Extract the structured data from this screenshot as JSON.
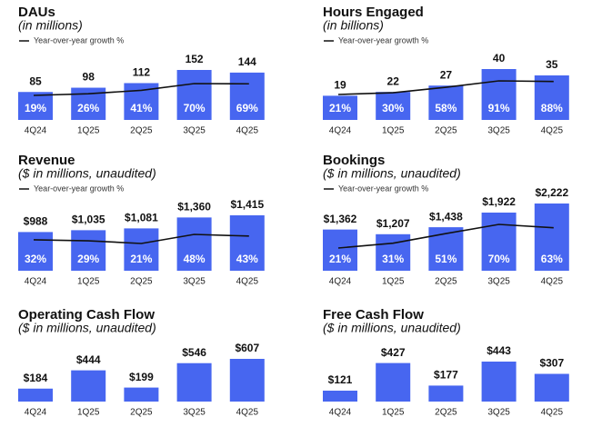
{
  "chart_data": [
    {
      "type": "bar",
      "title": "DAUs",
      "subtitle": "(in millions)",
      "categories": [
        "4Q24",
        "1Q25",
        "2Q25",
        "3Q25",
        "4Q25"
      ],
      "values": [
        85,
        98,
        112,
        152,
        144
      ],
      "color": "#4766f0",
      "line": {
        "name": "Year-over-year growth %",
        "color": "#111111",
        "values": [
          19,
          26,
          41,
          70,
          69
        ],
        "value_labels": [
          "19%",
          "26%",
          "41%",
          "70%",
          "69%"
        ]
      }
    },
    {
      "type": "bar",
      "title": "Hours Engaged",
      "subtitle": "(in billions)",
      "categories": [
        "4Q24",
        "1Q25",
        "2Q25",
        "3Q25",
        "4Q25"
      ],
      "values": [
        19,
        22,
        27,
        40,
        35
      ],
      "color": "#4766f0",
      "line": {
        "name": "Year-over-year growth %",
        "color": "#111111",
        "values": [
          21,
          30,
          58,
          91,
          88
        ],
        "value_labels": [
          "21%",
          "30%",
          "58%",
          "91%",
          "88%"
        ]
      }
    },
    {
      "type": "bar",
      "title": "Revenue",
      "subtitle": "($ in millions, unaudited)",
      "categories": [
        "4Q24",
        "1Q25",
        "2Q25",
        "3Q25",
        "4Q25"
      ],
      "values": [
        988,
        1035,
        1081,
        1360,
        1415
      ],
      "value_labels": [
        "$988",
        "$1,035",
        "$1,081",
        "$1,360",
        "$1,415"
      ],
      "color": "#4766f0",
      "line": {
        "name": "Year-over-year growth %",
        "color": "#111111",
        "values": [
          32,
          29,
          21,
          48,
          43
        ],
        "value_labels": [
          "32%",
          "29%",
          "21%",
          "48%",
          "43%"
        ]
      }
    },
    {
      "type": "bar",
      "title": "Bookings",
      "subtitle": "($ in millions, unaudited)",
      "categories": [
        "4Q24",
        "1Q25",
        "2Q25",
        "3Q25",
        "4Q25"
      ],
      "values": [
        1362,
        1207,
        1438,
        1922,
        2222
      ],
      "value_labels": [
        "$1,362",
        "$1,207",
        "$1,438",
        "$1,922",
        "$2,222"
      ],
      "color": "#4766f0",
      "line": {
        "name": "Year-over-year growth %",
        "color": "#111111",
        "values": [
          21,
          31,
          51,
          70,
          63
        ],
        "value_labels": [
          "21%",
          "31%",
          "51%",
          "70%",
          "63%"
        ]
      }
    },
    {
      "type": "bar",
      "title": "Operating Cash Flow",
      "subtitle": "($ in millions, unaudited)",
      "categories": [
        "4Q24",
        "1Q25",
        "2Q25",
        "3Q25",
        "4Q25"
      ],
      "values": [
        184,
        444,
        199,
        546,
        607
      ],
      "value_labels": [
        "$184",
        "$444",
        "$199",
        "$546",
        "$607"
      ],
      "color": "#4766f0"
    },
    {
      "type": "bar",
      "title": "Free Cash Flow",
      "subtitle": "($ in millions, unaudited)",
      "categories": [
        "4Q24",
        "1Q25",
        "2Q25",
        "3Q25",
        "4Q25"
      ],
      "values": [
        121,
        427,
        177,
        443,
        307
      ],
      "value_labels": [
        "$121",
        "$427",
        "$177",
        "$443",
        "$307"
      ],
      "color": "#4766f0"
    }
  ]
}
